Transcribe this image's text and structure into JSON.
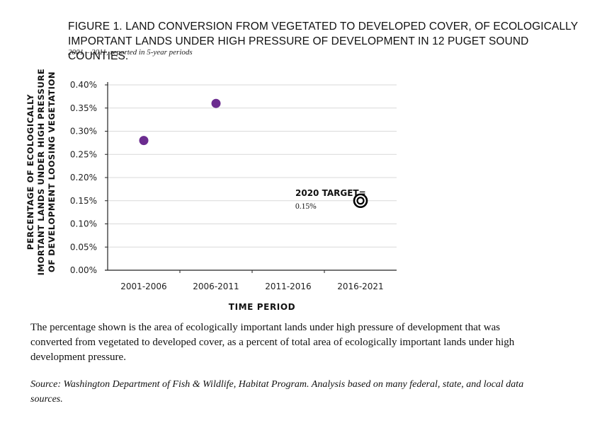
{
  "figure": {
    "title": "FIGURE 1. LAND CONVERSION FROM VEGETATED TO DEVELOPED COVER, OF ECOLOGICALLY IMPORTANT LANDS UNDER HIGH PRESSURE OF DEVELOPMENT IN 12 PUGET SOUND COUNTIES.",
    "subtitle": "2001 – 2011, reported in 5-year periods",
    "caption": "The percentage shown is the area of ecologically important lands under high pressure of development that was converted from vegetated to developed cover, as a percent of total area of ecologically important lands under high development pressure.",
    "source": "Source: Washington Department of Fish & Wildlife, Habitat Program. Analysis based on many federal, state, and local data sources."
  },
  "chart_data": {
    "type": "scatter",
    "categories": [
      "2001-2006",
      "2006-2011",
      "2011-2016",
      "2016-2021"
    ],
    "series": [
      {
        "values": [
          0.28,
          0.36,
          null,
          null
        ],
        "color": "#6b2c8f"
      }
    ],
    "target": {
      "category": "2016-2021",
      "value": 0.15,
      "label": "2020 TARGET=",
      "value_label": "0.15%"
    },
    "xlabel": "TIME PERIOD",
    "ylabel": "PERCENTAGE OF ECOLOGICALLY IMORTANT LANDS UNDER HIGH PRESSURE OF DEVELOPMENT LOOSING VEGETATION",
    "ylim": [
      0,
      0.4
    ],
    "yticks": [
      "0.00%",
      "0.05%",
      "0.10%",
      "0.15%",
      "0.20%",
      "0.25%",
      "0.30%",
      "0.35%",
      "0.40%"
    ],
    "grid": true,
    "colors": {
      "points": "#6b2c8f",
      "grid": "#d9d9d9",
      "axis": "#222222",
      "target": "#000000"
    }
  }
}
